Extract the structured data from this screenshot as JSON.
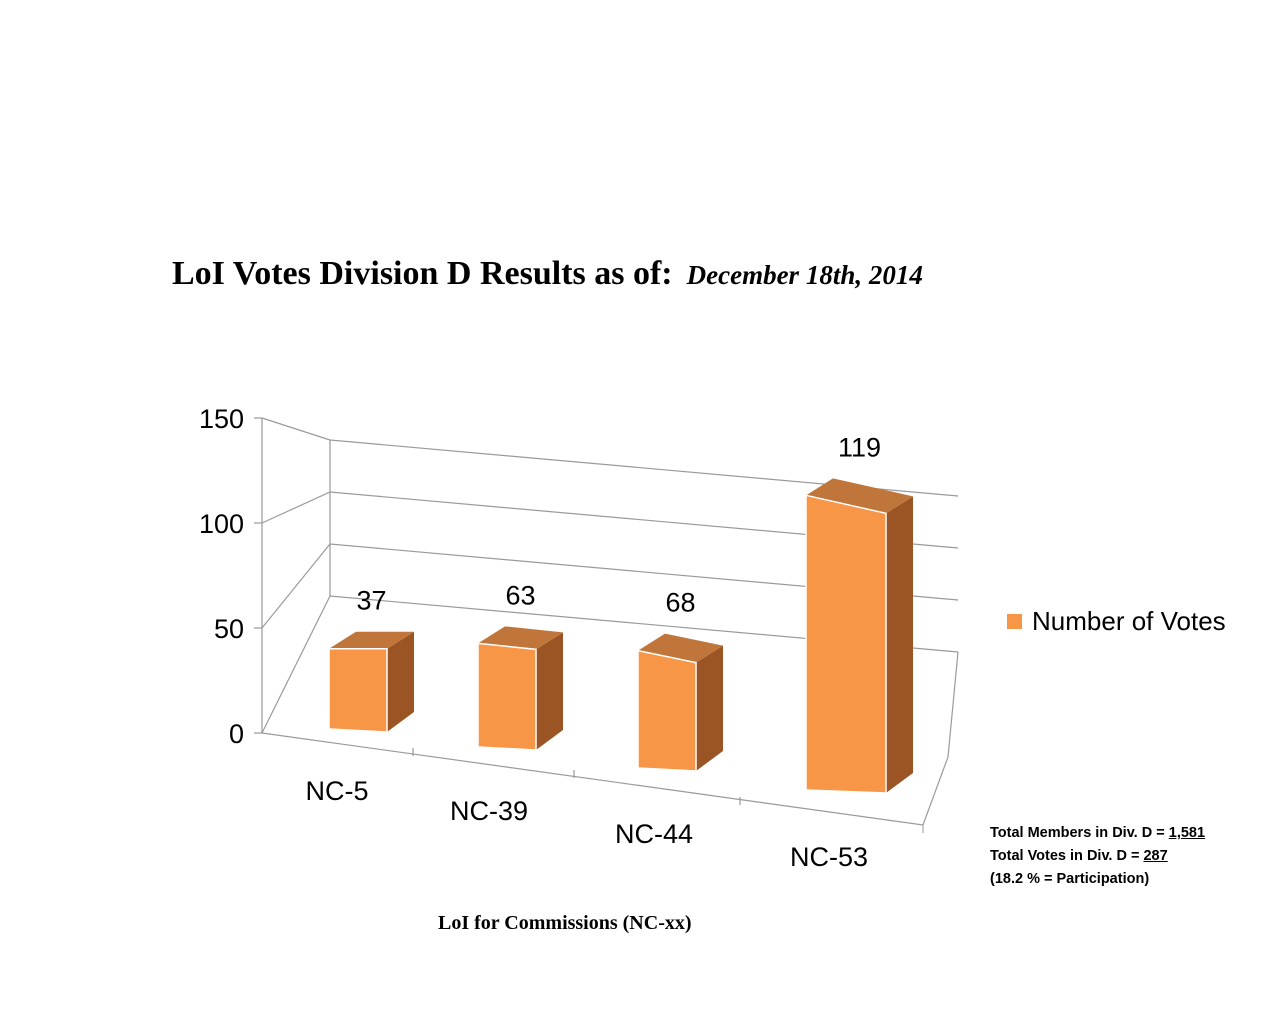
{
  "header": {
    "title": "LoI Votes Division D Results as of:",
    "date": "December 18th, 2014"
  },
  "legend": {
    "label": "Number of Votes"
  },
  "stats": {
    "members_prefix": "Total Members in Div. D = ",
    "members_value": "1,581",
    "votes_prefix": "Total Votes in Div. D = ",
    "votes_value": "287",
    "participation": "(18.2 % = Participation)"
  },
  "colors": {
    "bar_front": "#F79646",
    "bar_top": "#C0763A",
    "bar_side": "#9B5524",
    "axis": "#9a9a9a"
  },
  "chart_data": {
    "type": "bar",
    "title": "LoI Votes Division D Results as of: December 18th, 2014",
    "xlabel": "LoI for Commissions (NC-xx)",
    "ylabel": "",
    "categories": [
      "NC-5",
      "NC-39",
      "NC-44",
      "NC-53"
    ],
    "series": [
      {
        "name": "Number of Votes",
        "values": [
          37,
          63,
          68,
          119
        ]
      }
    ],
    "ylim": [
      0,
      150
    ],
    "yticks": [
      0,
      50,
      100,
      150
    ],
    "legend_position": "right",
    "grid": true
  }
}
